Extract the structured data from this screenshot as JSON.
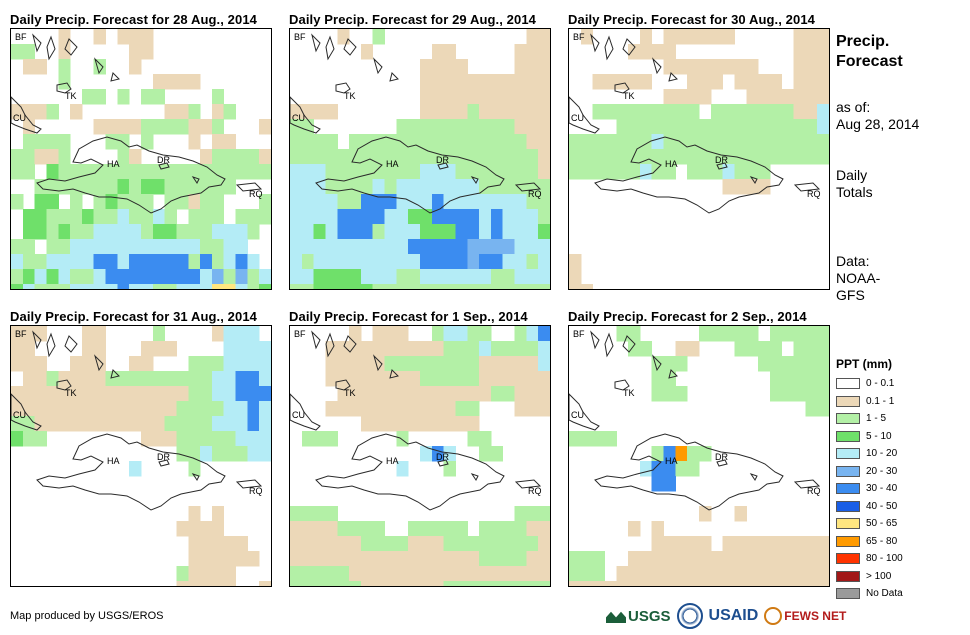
{
  "panels": [
    {
      "title": "Daily Precip. Forecast for 28 Aug., 2014"
    },
    {
      "title": "Daily Precip. Forecast for 29 Aug., 2014"
    },
    {
      "title": "Daily Precip. Forecast for 30 Aug., 2014"
    },
    {
      "title": "Daily Precip. Forecast for 31 Aug., 2014"
    },
    {
      "title": "Daily Precip. Forecast for 1 Sep., 2014"
    },
    {
      "title": "Daily Precip. Forecast for 2 Sep., 2014"
    }
  ],
  "map_labels": {
    "bf": "BF",
    "cu": "CU",
    "tk": "TK",
    "ha": "HA",
    "dr": "DR",
    "rq": "RQ"
  },
  "sidebar": {
    "title_line1": "Precip.",
    "title_line2": "Forecast",
    "asof_label": "as of:",
    "asof_date": "Aug 28, 2014",
    "totals_line1": "Daily",
    "totals_line2": "Totals",
    "data_label": "Data:",
    "data_source_line1": "NOAA-",
    "data_source_line2": "GFS"
  },
  "legend": {
    "title": "PPT (mm)",
    "items": [
      {
        "label": "0 - 0.1",
        "color": "#ffffff"
      },
      {
        "label": "0.1 - 1",
        "color": "#ecd8b8"
      },
      {
        "label": "1 - 5",
        "color": "#b3f0a6"
      },
      {
        "label": "5 - 10",
        "color": "#6fe06a"
      },
      {
        "label": "10 - 20",
        "color": "#b4ecf6"
      },
      {
        "label": "20 - 30",
        "color": "#78b4f0"
      },
      {
        "label": "30 - 40",
        "color": "#3b8cf0"
      },
      {
        "label": "40 - 50",
        "color": "#1a5ee6"
      },
      {
        "label": "50 - 65",
        "color": "#ffe680"
      },
      {
        "label": "65 - 80",
        "color": "#ff9a00"
      },
      {
        "label": "80 - 100",
        "color": "#ff3300"
      },
      {
        "label": "> 100",
        "color": "#a21818"
      },
      {
        "label": "No Data",
        "color": "#9a9a9a"
      }
    ]
  },
  "credit": "Map produced by USGS/EROS",
  "logos": {
    "usgs": "USGS",
    "usaid": "USAID",
    "fews": "FEWS NET"
  },
  "grids": [
    [
      "WWWWTWWTWTTTWWWWWWWWWW",
      "LLWWTWWWWWTTWWWWWWWWWW",
      "WTTWLWWLWWTWWWWWWWWWWW",
      "WWWWLWWWWWWWTTTTWWWWWW",
      "WWWWWWLLWLWLLWWWWLWWWW",
      "TTTLWTWWWWWWWTTLWTLWWW",
      "WTWWWWWTTTTLLLLTTLWWWT",
      "WLLLLWWWLLWLWWWTWTTWWW",
      "LLTTLWWWWLTWWWWWTLLLLT",
      "LLWGLLLLLLLLLLLLLLLLLL",
      "WWLLLLLLLGLGGLLLLLLWWW",
      "LWGGWLWLGLLLWLLTLLWWWL",
      "WGGLLLGLLCLLCLWLLLWLLL",
      "WGGLGLLCCCCLGGLLLCCCLW",
      "LLWLLCCCCCCCCCCCLLCCWW",
      "CLLCCCCBBCBBBBBLBLCBCW",
      "LGCGCLLCBBBBBBBBCDLDLC",
      "GCLLLCCCCBCCLLCCCYYCLG"
    ],
    [
      "WWWWTWWLWWWWWWWWWWWWTT",
      "WWWWWWTWWWWWTTWWWWWTTT",
      "WWWWWWWWWWWTTTTWWWWTTT",
      "WWWWWWWWWWWTTTTTTTTTTT",
      "WWWWWWWWWWWTTTTTTTTTTT",
      "TTTTWWWWWWWTTTTLTTTTTT",
      "LLWWWWWWWLLLLLLLLLLTTT",
      "LLLLWLLLLLLLLLLLLLLLTT",
      "LLLLLLLLLLLLLLLLLLLLLT",
      "CCCLLLLLLLLCCCLLLLLLLT",
      "CCCLLLLCLCCCCCCCLLLLLL",
      "CCCCLLBBBCCCBCCCCCCCLL",
      "CCCCBBBBCCGGBBBBCBCCCL",
      "CCGCBBBLCCCGGGBBCBCCCG",
      "CCCCCCCCCCBBBBBDDDDCCC",
      "CLCCCCCCCCCBBBBDBBCCLC",
      "CCGGGGCCCLLCCCCCCLLCCC",
      "LLGGGGGLLLLLLLLLLLLLLL"
    ],
    [
      "WTWWWWTWTTTTTTWWWWWTTT",
      "WWWWWTTTTWWWWWWWWWWTTT",
      "WWWWWWWWTTTTTTTTWWWTTT",
      "WWTTTTTWWWTTTWTTTTWTTT",
      "WWWWWWWWTTTTWWWTTTTTTT",
      "WWLLLLLLLLLWLLLLLLLTTC",
      "WWWWLLLLLLLLLLLLLLLLLC",
      "LLLLLLLCLLLLLLLLLLLLLL",
      "LLLLLLLLLLLLLLLLLLLLLL",
      "LLLLLLCLLWLLLCLLLWWWWW",
      "WWWWWWWWWWWWWTTTTWWWWW",
      "WWWWWWWWWWWWWWWWWWWWWW",
      "WWWWWWWWWWWWWWWWWWWWWW",
      "WWWWWWWWWWWWWWWWWWWWWW",
      "WWWWWWWWWWWWWWWWWWWWWW",
      "TWWWWWWWWWWWWWWWWWWWWW",
      "TWWWWWWWWWWWWWWWWWWWWW",
      "TTWWWWWWWWWWWWWWWWWWWW"
    ],
    [
      "TTTWWWTTWWWWLWWWWTCCCW",
      "TTWWWWTTWWWTTTWWWWCCCC",
      "TTTWWTTTWWTTWWWLLLCCCC",
      "WTTLTTTTLLLLLLLLLCCBBC",
      "TTTTTTTTTTTTTTTLLCCBBB",
      "TTTTTTTTTTTTTTLLLLCCBC",
      "LLTTTTTTTTTTTLLLLCCCBC",
      "GLLWWWWWWWWTTTLLLLLCCC",
      "WWWWWWWWWWWWWWLLCLLLCC",
      "WWWWWWWWWWCWWWWLWWWWWW",
      "WWWWWWWWWWWWWWWWWWWWWW",
      "WWWWWWWWWWWWWWWWWWWWWW",
      "WWWWWWWWWWWWWWWTWTWWWW",
      "WWWWWWWWWWWWWWTTTTWWWW",
      "WWWWWWWWWWWWWWWTTTTTWW",
      "WWWWWWWWWWWWWWWTTTTTTW",
      "WWWWWWWWWWWWWWLTTTTWWW",
      "WWWWWWWWWWWWWWTTTTTWWT"
    ],
    [
      "WWWWWTWTTTWWLCCLLWWLCB",
      "WWWTTTTTTTTTTLLLCLLLLC",
      "WWWTTTTTLLLLLLLLTTTTTC",
      "WWWTTTTTTTTLLLLLTTTTTT",
      "WWWWTTTTTTTTTTTTTLLTTT",
      "WWWTTTTTTTTTTTLLWWWTTT",
      "WWWWWWTTTTTTTTTTWWWWWW",
      "WLLLWWWWWLWWWWWLLWWWWW",
      "WWWWWWWWWWWCBCWWLLWWWW",
      "WWWWWWWWWCWWWLWWWWWWWW",
      "WWWWWWWWWWWWWWWWWWWWWW",
      "WWWWWWWWWWWWWWWWWWWWWW",
      "LLLLWWWWWWWWWWWWWWWLLL",
      "TTTTLLLLWWLLLLLWLLLLTT",
      "TTTTTTLLLLTTTLLLLLLLLT",
      "TTTTTTTTTTTTTTTTLLLLTT",
      "LLLLLTTTTTTTTTTTTTTTTT",
      "LLLLLLTTTTTTTLLLLLLLLL"
    ],
    [
      "WWWWLLWWWWWLLLLLWLLLLL",
      "WWWWWLLWWTTWWWLLLLWLLL",
      "WWWWWWWLLLWWWWWWLLLLLL",
      "WWWWWWWLLWWWWWWWWLLLLL",
      "WWWWWWWLLLWWWWWWWLLLLL",
      "WWWWWWWWWWWWWWWWWWWWLL",
      "WWWWWWWWWWWWWWWWWWWWWW",
      "LLLLWWWWWWWWWWWWWWWWWW",
      "WWWWWWWLBOLLWWWWWWWWWW",
      "WWWWWWCBBLLWWWWWWWWWWW",
      "WWWWWWWBBWWWWWWWWWWWWW",
      "WWWWWWWWWWWWWWWWWWWWWW",
      "WWWWWWWWWWWTWWTWWWWWWW",
      "WWWWWTWTWWWWWWWWWWWWWW",
      "WWWWWWWTTTTTWTTTTTTTTT",
      "LLLWWTTTTTTTTTTTTTTTTT",
      "LLLWTTTTTTTTTTTTTTTTTT",
      "TTTTTTTTTTTTTTTTTTTTTT"
    ]
  ]
}
